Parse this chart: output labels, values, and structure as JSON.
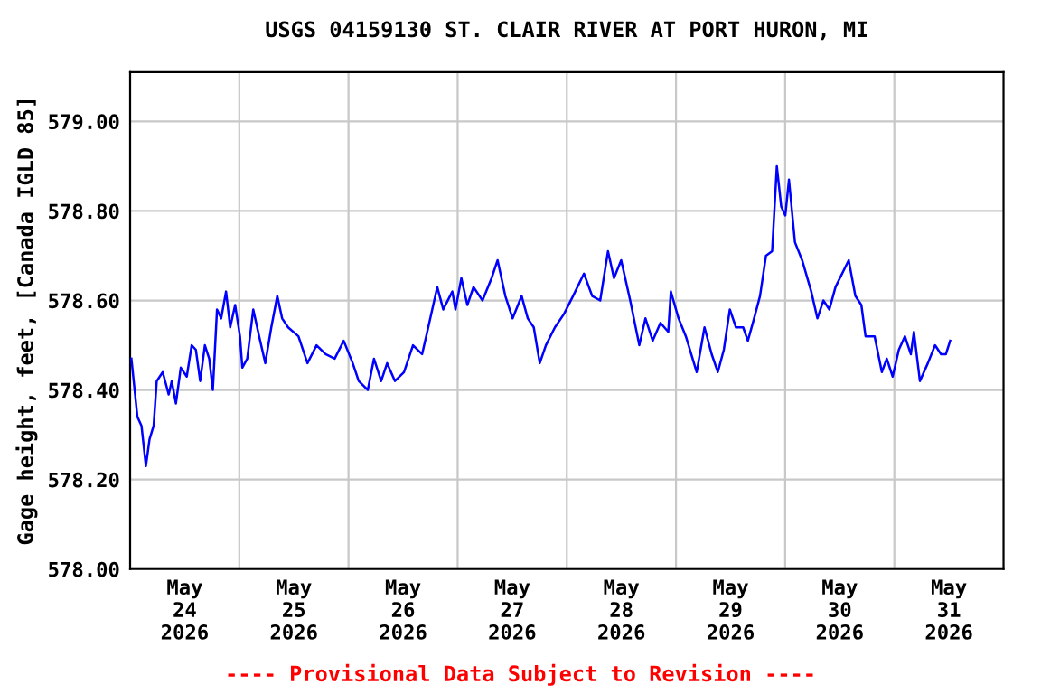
{
  "chart_data": {
    "type": "line",
    "title": "USGS 04159130 ST. CLAIR RIVER AT PORT HURON, MI",
    "ylabel": "Gage height, feet, [Canada IGLD 85]",
    "annotations": [
      "---- Provisional Data Subject to Revision ----"
    ],
    "x": [
      "2026-05-24T00:17",
      "2026-05-24T01:36",
      "2026-05-24T02:30",
      "2026-05-24T03:28",
      "2026-05-24T04:16",
      "2026-05-24T05:10",
      "2026-05-24T05:51",
      "2026-05-24T07:10",
      "2026-05-24T08:29",
      "2026-05-24T09:09",
      "2026-05-24T10:04",
      "2026-05-24T11:08",
      "2026-05-24T12:27",
      "2026-05-24T13:32",
      "2026-05-24T14:27",
      "2026-05-24T15:24",
      "2026-05-24T16:26",
      "2026-05-24T17:23",
      "2026-05-24T18:11",
      "2026-05-24T19:06",
      "2026-05-24T20:01",
      "2026-05-24T21:05",
      "2026-05-24T22:00",
      "2026-05-24T23:05",
      "2026-05-25T00:09",
      "2026-05-25T00:40",
      "2026-05-25T01:45",
      "2026-05-25T03:04",
      "2026-05-25T04:22",
      "2026-05-25T05:43",
      "2026-05-25T07:02",
      "2026-05-25T08:21",
      "2026-05-25T09:25",
      "2026-05-25T10:44",
      "2026-05-25T13:00",
      "2026-05-25T14:59",
      "2026-05-25T16:59",
      "2026-05-25T18:58",
      "2026-05-25T20:58",
      "2026-05-25T22:57",
      "2026-05-26T00:56",
      "2026-05-26T02:15",
      "2026-05-26T04:15",
      "2026-05-26T05:36",
      "2026-05-26T07:11",
      "2026-05-26T08:30",
      "2026-05-26T10:13",
      "2026-05-26T12:12",
      "2026-05-26T14:11",
      "2026-05-26T16:11",
      "2026-05-26T17:32",
      "2026-05-26T19:31",
      "2026-05-26T20:50",
      "2026-05-26T22:50",
      "2026-05-26T23:31",
      "2026-05-27T00:49",
      "2026-05-27T02:08",
      "2026-05-27T03:29",
      "2026-05-27T05:28",
      "2026-05-27T07:28",
      "2026-05-27T08:47",
      "2026-05-27T10:29",
      "2026-05-27T12:05",
      "2026-05-27T14:04",
      "2026-05-27T15:25",
      "2026-05-27T16:44",
      "2026-05-27T18:03",
      "2026-05-27T19:24",
      "2026-05-27T21:23",
      "2026-05-27T23:23",
      "2026-05-28T01:22",
      "2026-05-28T03:46",
      "2026-05-28T05:35",
      "2026-05-28T07:20",
      "2026-05-28T09:03",
      "2026-05-28T10:22",
      "2026-05-28T11:57",
      "2026-05-28T13:56",
      "2026-05-28T15:56",
      "2026-05-28T17:17",
      "2026-05-28T18:53",
      "2026-05-28T20:35",
      "2026-05-28T22:18",
      "2026-05-28T22:52",
      "2026-05-29T00:34",
      "2026-05-29T02:10",
      "2026-05-29T04:33",
      "2026-05-29T06:16",
      "2026-05-29T07:51",
      "2026-05-29T09:12",
      "2026-05-29T10:31",
      "2026-05-29T11:50",
      "2026-05-29T13:11",
      "2026-05-29T14:46",
      "2026-05-29T15:48",
      "2026-05-29T17:10",
      "2026-05-29T18:28",
      "2026-05-29T19:47",
      "2026-05-29T21:08",
      "2026-05-29T22:10",
      "2026-05-29T23:08",
      "2026-05-30T00:02",
      "2026-05-30T00:50",
      "2026-05-30T02:09",
      "2026-05-30T03:44",
      "2026-05-30T05:44",
      "2026-05-30T07:05",
      "2026-05-30T08:24",
      "2026-05-30T09:43",
      "2026-05-30T11:04",
      "2026-05-30T13:58",
      "2026-05-30T15:26",
      "2026-05-30T16:45",
      "2026-05-30T17:40",
      "2026-05-30T19:40",
      "2026-05-30T21:15",
      "2026-05-30T22:20",
      "2026-05-30T23:38",
      "2026-05-31T00:59",
      "2026-05-31T02:19",
      "2026-05-31T03:37",
      "2026-05-31T04:18",
      "2026-05-31T05:37",
      "2026-05-31T07:22",
      "2026-05-31T08:57",
      "2026-05-31T10:16",
      "2026-05-31T11:20",
      "2026-05-31T12:16"
    ],
    "series": [
      {
        "color": "#0000ff",
        "values": [
          578.47,
          578.34,
          578.32,
          578.23,
          578.29,
          578.32,
          578.42,
          578.44,
          578.39,
          578.42,
          578.37,
          578.45,
          578.43,
          578.5,
          578.49,
          578.42,
          578.5,
          578.47,
          578.4,
          578.58,
          578.56,
          578.62,
          578.54,
          578.59,
          578.52,
          578.45,
          578.47,
          578.58,
          578.52,
          578.46,
          578.54,
          578.61,
          578.56,
          578.54,
          578.52,
          578.46,
          578.5,
          578.48,
          578.47,
          578.51,
          578.46,
          578.42,
          578.4,
          578.47,
          578.42,
          578.46,
          578.42,
          578.44,
          578.5,
          578.48,
          578.54,
          578.63,
          578.58,
          578.62,
          578.58,
          578.65,
          578.59,
          578.63,
          578.6,
          578.65,
          578.69,
          578.61,
          578.56,
          578.61,
          578.56,
          578.54,
          578.46,
          578.5,
          578.54,
          578.57,
          578.61,
          578.66,
          578.61,
          578.6,
          578.71,
          578.65,
          578.69,
          578.6,
          578.5,
          578.56,
          578.51,
          578.55,
          578.53,
          578.62,
          578.56,
          578.52,
          578.44,
          578.54,
          578.48,
          578.44,
          578.49,
          578.58,
          578.54,
          578.54,
          578.51,
          578.56,
          578.61,
          578.7,
          578.71,
          578.9,
          578.81,
          578.79,
          578.87,
          578.73,
          578.69,
          578.62,
          578.56,
          578.6,
          578.58,
          578.63,
          578.69,
          578.61,
          578.59,
          578.52,
          578.52,
          578.44,
          578.47,
          578.43,
          578.49,
          578.52,
          578.48,
          578.53,
          578.42,
          578.46,
          578.5,
          578.48,
          578.48,
          578.51
        ]
      }
    ],
    "xlim": [
      "2026-05-24T00:00",
      "2026-06-01T00:00"
    ],
    "xticks": [
      {
        "value": "2026-05-24T12:00",
        "label": "May\n24\n2026"
      },
      {
        "value": "2026-05-25T00:00",
        "label": null
      },
      {
        "value": "2026-05-25T12:00",
        "label": "May\n25\n2026"
      },
      {
        "value": "2026-05-26T00:00",
        "label": null
      },
      {
        "value": "2026-05-26T12:00",
        "label": "May\n26\n2026"
      },
      {
        "value": "2026-05-27T00:00",
        "label": null
      },
      {
        "value": "2026-05-27T12:00",
        "label": "May\n27\n2026"
      },
      {
        "value": "2026-05-28T00:00",
        "label": null
      },
      {
        "value": "2026-05-28T12:00",
        "label": "May\n28\n2026"
      },
      {
        "value": "2026-05-29T00:00",
        "label": null
      },
      {
        "value": "2026-05-29T12:00",
        "label": "May\n29\n2026"
      },
      {
        "value": "2026-05-30T00:00",
        "label": null
      },
      {
        "value": "2026-05-30T12:00",
        "label": "May\n30\n2026"
      },
      {
        "value": "2026-05-31T00:00",
        "label": null
      },
      {
        "value": "2026-05-31T12:00",
        "label": "May\n31\n2026"
      }
    ],
    "ylim": [
      578.0,
      579.11
    ],
    "yticks": [
      {
        "value": 578.0,
        "label": "578.00"
      },
      {
        "value": 578.2,
        "label": "578.20"
      },
      {
        "value": 578.4,
        "label": "578.40"
      },
      {
        "value": 578.6,
        "label": "578.60"
      },
      {
        "value": 578.8,
        "label": "578.80"
      },
      {
        "value": 579.0,
        "label": "579.00"
      }
    ],
    "grid": true,
    "legend": false,
    "marker": "none",
    "line_style": "solid"
  }
}
